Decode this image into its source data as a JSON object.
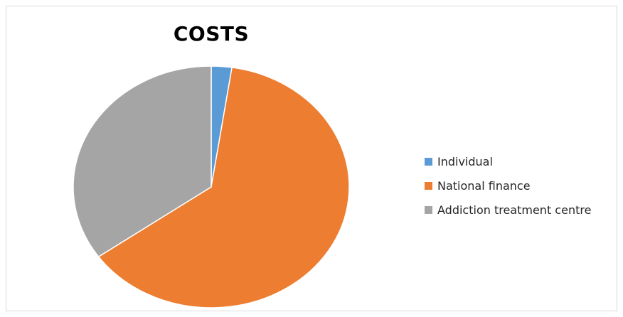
{
  "chart_data": {
    "type": "pie",
    "title": "COSTS",
    "categories": [
      "Individual",
      "National finance",
      "Addiction treatment centre"
    ],
    "values": [
      2.4,
      62.8,
      34.8
    ],
    "colors": [
      "#5b9bd5",
      "#ed7d31",
      "#a5a5a5"
    ],
    "legend_position": "right",
    "start_angle_deg": 0,
    "direction": "clockwise"
  }
}
